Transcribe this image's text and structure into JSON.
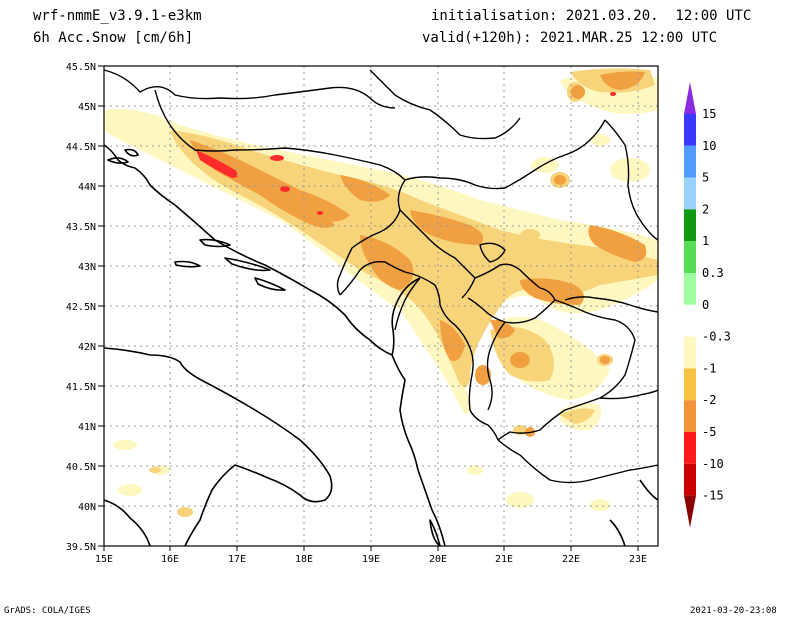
{
  "header": {
    "model": "wrf-nmmE_v3.9.1-e3km",
    "field": "6h Acc.Snow [cm/6h]",
    "init": "initialisation: 2021.03.20.  12:00 UTC",
    "valid": "valid(+120h): 2021.MAR.25 12:00 UTC"
  },
  "footer": {
    "left": "GrADS: COLA/IGES",
    "right": "2021-03-20-23:08"
  },
  "map": {
    "lat_labels": [
      "45.5N",
      "45N",
      "44.5N",
      "44N",
      "43.5N",
      "43N",
      "42.5N",
      "42N",
      "41.5N",
      "41N",
      "40.5N",
      "40N",
      "39.5N"
    ],
    "lon_labels": [
      "15E",
      "16E",
      "17E",
      "18E",
      "19E",
      "20E",
      "21E",
      "22E",
      "23E"
    ],
    "lon_range": [
      15,
      23.3
    ],
    "lat_range": [
      39.5,
      45.5
    ]
  },
  "colorbar": {
    "labels": [
      "15",
      "10",
      "5",
      "2",
      "1",
      "0.3",
      "0",
      "-0.3",
      "-1",
      "-2",
      "-5",
      "-10",
      "-15"
    ],
    "colors": [
      "#8a2be2",
      "#3a3aff",
      "#4f9bff",
      "#9ad2ff",
      "#119911",
      "#55dd55",
      "#9fff9f",
      "#ffffff",
      "#fff7c0",
      "#f5c242",
      "#f5953a",
      "#ff1a1a",
      "#c80000",
      "#8b0000"
    ]
  },
  "snow_colors": {
    "light": "#fff7c0",
    "pale": "#f7d37a",
    "mid": "#f0a040",
    "strong": "#ff2a2a"
  }
}
